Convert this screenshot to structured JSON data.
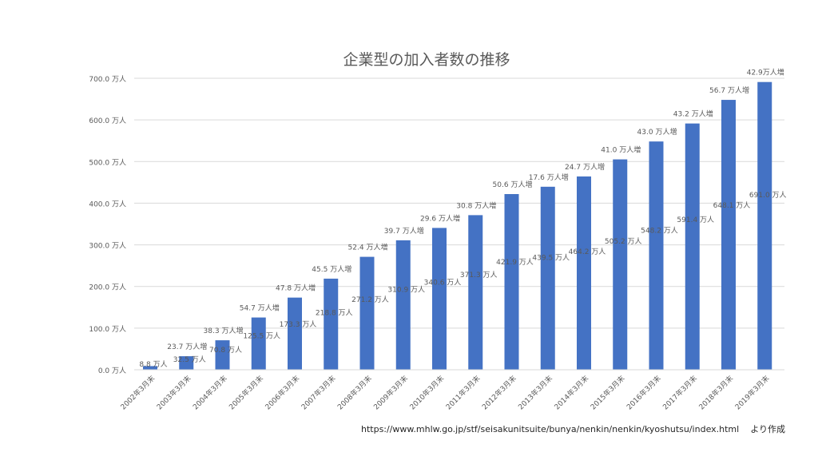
{
  "chart_data": {
    "type": "bar",
    "title": "企業型の加入者数の推移",
    "categories": [
      "2002年3月末",
      "2003年3月末",
      "2004年3月末",
      "2005年3月末",
      "2006年3月末",
      "2007年3月末",
      "2008年3月末",
      "2009年3月末",
      "2010年3月末",
      "2011年3月末",
      "2012年3月末",
      "2013年3月末",
      "2014年3月末",
      "2015年3月末",
      "2016年3月末",
      "2017年3月末",
      "2018年3月末",
      "2019年3月末"
    ],
    "series": [
      {
        "values": [
          8.8,
          32.5,
          70.8,
          125.5,
          173.3,
          218.8,
          271.2,
          310.9,
          340.6,
          371.3,
          421.9,
          439.5,
          464.2,
          505.2,
          548.2,
          591.4,
          648.1,
          691.0
        ],
        "value_labels": [
          "8.8 万人",
          "32.5 万人",
          "70.8 万人",
          "125.5 万人",
          "173.3 万人",
          "218.8 万人",
          "271.2 万人",
          "310.9 万人",
          "340.6 万人",
          "371.3 万人",
          "421.9 万人",
          "439.5 万人",
          "464.2 万人",
          "505.2 万人",
          "548.2 万人",
          "591.4 万人",
          "648.1 万人",
          "691.0 万人"
        ]
      }
    ],
    "increase_labels": [
      "",
      "23.7 万人増",
      "38.3 万人増",
      "54.7 万人増",
      "47.8 万人増",
      "45.5 万人増",
      "52.4 万人増",
      "39.7 万人増",
      "29.6 万人増",
      "30.8 万人増",
      "50.6 万人増",
      "17.6 万人増",
      "24.7 万人増",
      "41.0 万人増",
      "43.0 万人増",
      "43.2 万人増",
      "56.7 万人増",
      "42.9万人増"
    ],
    "yticks": [
      0,
      100,
      200,
      300,
      400,
      500,
      600,
      700
    ],
    "ytick_labels": [
      "0.0 万人",
      "100.0 万人",
      "200.0 万人",
      "300.0 万人",
      "400.0 万人",
      "500.0 万人",
      "600.0 万人",
      "700.0 万人"
    ],
    "ylim": [
      0,
      700
    ],
    "grid": true,
    "legend": "none",
    "bar_color": "#4472C4",
    "grid_color": "#D9D9D9"
  },
  "source": {
    "url": "https://www.mhlw.go.jp/stf/seisakunitsuite/bunya/nenkin/nenkin/kyoshutsu/index.html",
    "suffix": "より作成"
  }
}
